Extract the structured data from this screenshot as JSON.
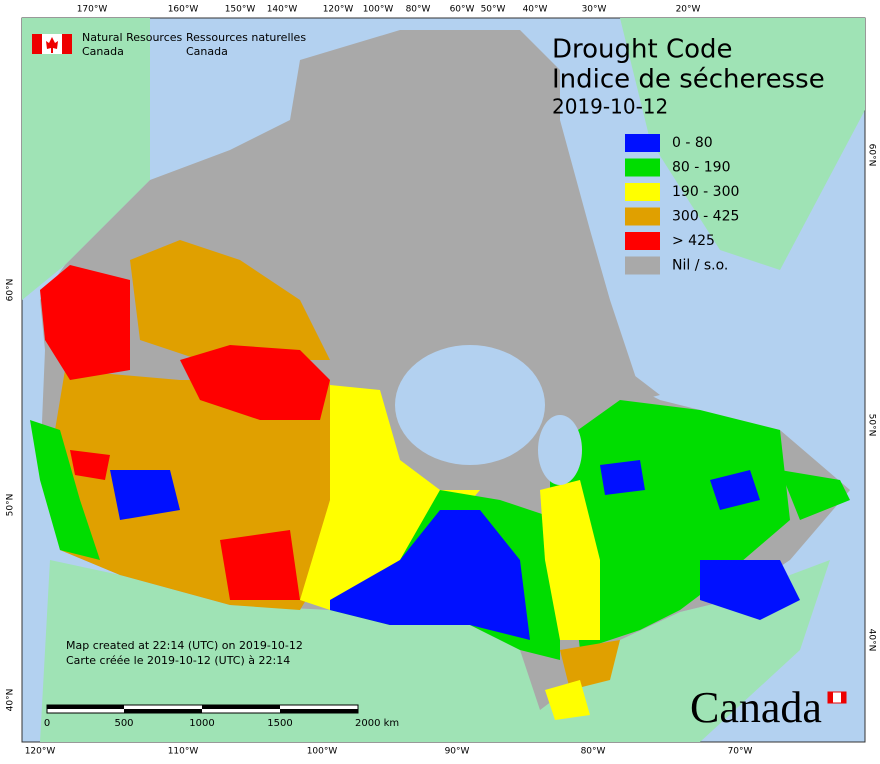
{
  "header": {
    "agency_en": "Natural Resources",
    "agency_en_2": "Canada",
    "agency_fr": "Ressources naturelles",
    "agency_fr_2": "Canada"
  },
  "title": "Drought Code",
  "title_fr": "Indice de sécheresse",
  "date": "2019-10-12",
  "legend": [
    {
      "label": "0 - 80",
      "color": "#0010ff"
    },
    {
      "label": "80 - 190",
      "color": "#00dd00"
    },
    {
      "label": "190 - 300",
      "color": "#ffff00"
    },
    {
      "label": "300 - 425",
      "color": "#e0a000"
    },
    {
      "label": "> 425",
      "color": "#ff0000"
    },
    {
      "label": "Nil / s.o.",
      "color": "#a9a9a9"
    }
  ],
  "graticule": {
    "top": [
      "170°W",
      "160°W",
      "150°W",
      "140°W",
      "120°W",
      "100°W",
      "80°W",
      "60°W",
      "50°W",
      "40°W",
      "30°W",
      "20°W"
    ],
    "bottom": [
      "120°W",
      "110°W",
      "100°W",
      "90°W",
      "80°W",
      "70°W"
    ],
    "left": [
      "60°N",
      "50°N",
      "40°N"
    ],
    "right": [
      "60°N",
      "50°N",
      "40°N"
    ]
  },
  "credits": [
    "Map created at 22:14 (UTC) on 2019-10-12",
    "Carte créée le 2019-10-12 (UTC) à 22:14"
  ],
  "scale_bar": [
    "0",
    "500",
    "1000",
    "1500",
    "2000 km"
  ],
  "wordmark": "Canada"
}
